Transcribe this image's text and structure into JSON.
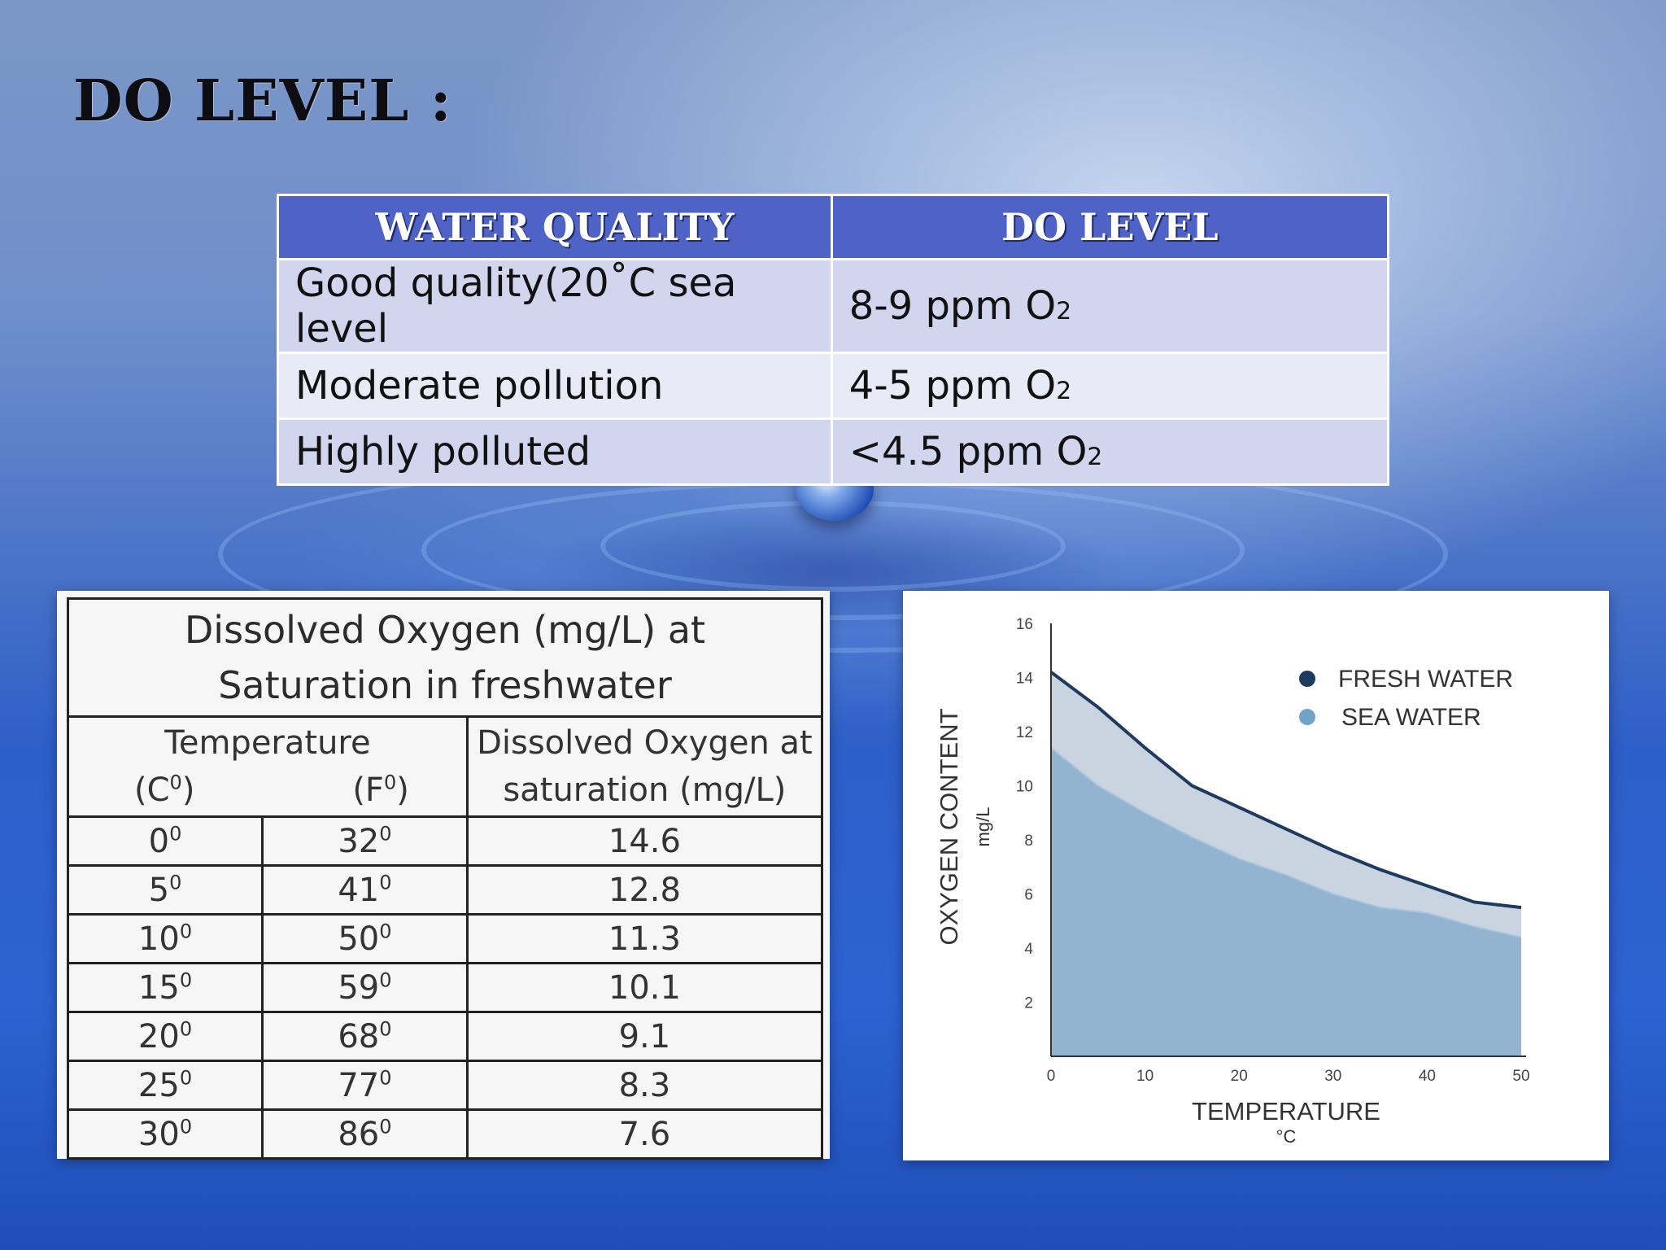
{
  "slide": {
    "title": "DO LEVEL :"
  },
  "quality_table": {
    "headers": [
      "WATER QUALITY",
      "DO LEVEL"
    ],
    "rows": [
      {
        "quality": "Good quality(20˚C sea level",
        "level": "8-9 ppm O",
        "level_sub": "2"
      },
      {
        "quality": "Moderate pollution",
        "level": "4-5 ppm O",
        "level_sub": "2"
      },
      {
        "quality": "Highly polluted",
        "level": "<4.5 ppm O",
        "level_sub": "2"
      }
    ],
    "colors": {
      "header": "#4f62c6",
      "row_dark": "#d1d5ee",
      "row_light": "#e8eaf6"
    }
  },
  "saturation_table": {
    "title_line1": "Dissolved Oxygen (mg/L) at",
    "title_line2": "Saturation in freshwater",
    "temp_header": "Temperature",
    "unit_c": "(C",
    "unit_f": "(F",
    "unit_sup": "0",
    "unit_close": ")",
    "do_header_line1": "Dissolved Oxygen at",
    "do_header_line2": "saturation (mg/L)",
    "degree_sup": "0",
    "rows": [
      {
        "c": "0",
        "f": "32",
        "do": "14.6"
      },
      {
        "c": "5",
        "f": "41",
        "do": "12.8"
      },
      {
        "c": "10",
        "f": "50",
        "do": "11.3"
      },
      {
        "c": "15",
        "f": "59",
        "do": "10.1"
      },
      {
        "c": "20",
        "f": "68",
        "do": "9.1"
      },
      {
        "c": "25",
        "f": "77",
        "do": "8.3"
      },
      {
        "c": "30",
        "f": "86",
        "do": "7.6"
      }
    ]
  },
  "chart_data": {
    "type": "area",
    "xlabel": "TEMPERATURE",
    "xunit": "°C",
    "ylabel": "OXYGEN CONTENT",
    "yunit": "mg/L",
    "xlim": [
      0,
      50
    ],
    "ylim": [
      0,
      16
    ],
    "x_ticks": [
      0,
      10,
      20,
      30,
      40,
      50
    ],
    "y_ticks": [
      2,
      4,
      6,
      8,
      10,
      12,
      14,
      16
    ],
    "legend_position": "top-right",
    "series": [
      {
        "name": "FRESH WATER",
        "color": "#1f3a5f",
        "fill": "#c9d4e0",
        "x": [
          0,
          5,
          10,
          15,
          20,
          25,
          30,
          35,
          40,
          45,
          50
        ],
        "y": [
          14.2,
          12.9,
          11.4,
          10.0,
          9.2,
          8.4,
          7.6,
          6.9,
          6.3,
          5.7,
          5.5
        ]
      },
      {
        "name": "SEA WATER",
        "color": "#6fa3c8",
        "fill": "#92b4d0",
        "x": [
          0,
          5,
          10,
          15,
          20,
          25,
          30,
          35,
          40,
          45,
          50
        ],
        "y": [
          11.4,
          10.0,
          9.0,
          8.1,
          7.3,
          6.7,
          6.0,
          5.5,
          5.3,
          4.8,
          4.4
        ]
      }
    ]
  }
}
